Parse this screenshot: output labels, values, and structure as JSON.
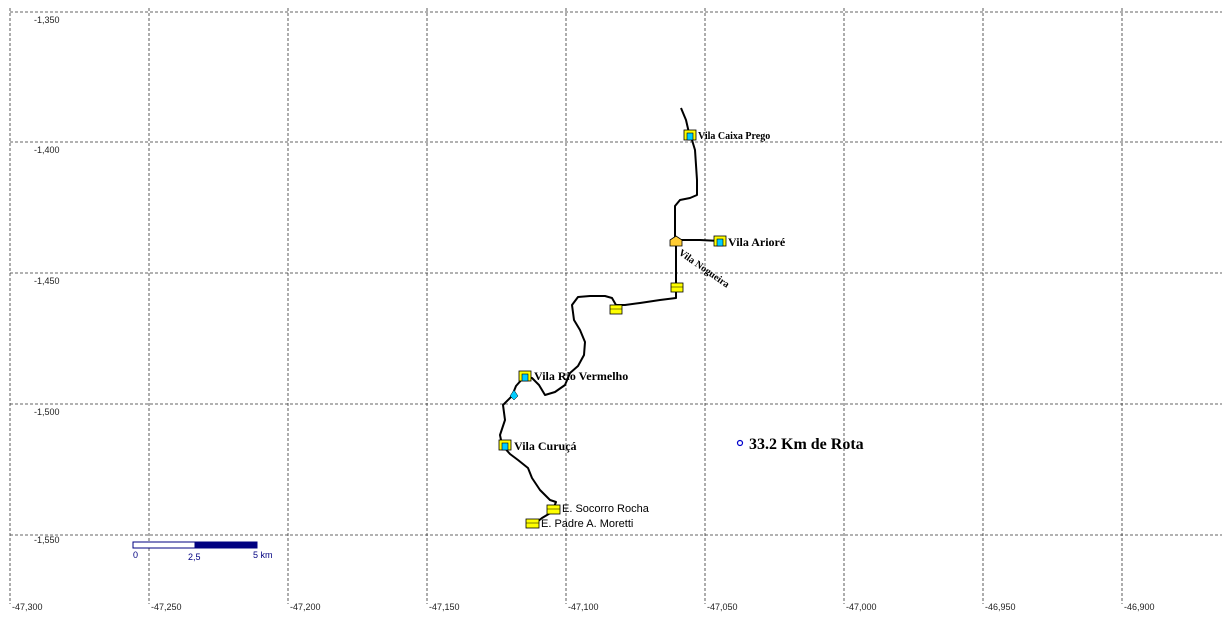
{
  "map": {
    "longitude_ticks": [
      "-47,300",
      "-47,250",
      "-47,200",
      "-47,150",
      "-47,100",
      "-47,050",
      "-47,000",
      "-46,950",
      "-46,900"
    ],
    "latitude_ticks": [
      "-1,350",
      "-1,400",
      "-1,450",
      "-1,500",
      "-1,550"
    ],
    "grid": "dashed",
    "route_color": "#000000",
    "building_icon_color": "#ffff00",
    "water_icon_color": "#00ccff"
  },
  "places": [
    {
      "id": "vila-caixa-prego",
      "label": "Vila Caixa Prego",
      "icon": "village-icon"
    },
    {
      "id": "vila-ariore",
      "label": "Vila Arioré",
      "icon": "village-icon"
    },
    {
      "id": "vila-nogueira",
      "label": "Vila Nogueira",
      "icon": "building-icon"
    },
    {
      "id": "vila-rio-vermelho",
      "label": "Vila Rio Vermelho",
      "icon": "village-icon"
    },
    {
      "id": "vila-curuca",
      "label": "Vila Curuçá",
      "icon": "village-icon"
    },
    {
      "id": "e-socorro-rocha",
      "label": "E. Socorro Rocha",
      "icon": "school-icon"
    },
    {
      "id": "e-padre-moretti",
      "label": "E. Padre A. Moretti",
      "icon": "school-icon"
    }
  ],
  "route_distance": {
    "label": "33.2 Km de Rota"
  },
  "scale_bar": {
    "labels": [
      "0",
      "2,5",
      "5 km"
    ]
  }
}
